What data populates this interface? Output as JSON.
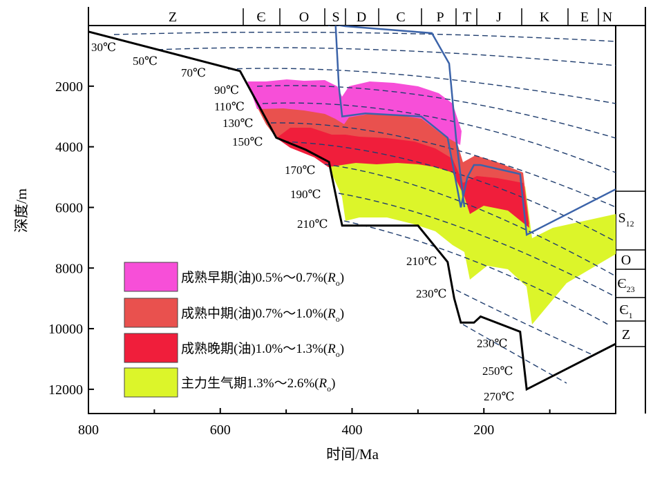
{
  "chart_data": {
    "type": "area",
    "title": "",
    "xlabel": "时间/Ma",
    "ylabel": "深度/m",
    "xlim": [
      800,
      0
    ],
    "ylim": [
      0,
      12800
    ],
    "x_ticks": [
      800,
      600,
      400,
      200
    ],
    "y_ticks": [
      2000,
      4000,
      6000,
      8000,
      10000,
      12000
    ],
    "periods": [
      "Z",
      "Є",
      "O",
      "S",
      "D",
      "C",
      "P",
      "T",
      "J",
      "K",
      "E",
      "N"
    ],
    "strata_right": [
      "S12",
      "O",
      "Є23",
      "Є1",
      "Z"
    ],
    "legend": [
      {
        "label": "成熟早期(油)0.5%～0.7%(Ro)",
        "color": "#f74fd8"
      },
      {
        "label": "成熟中期(油)0.7%～1.0%(Ro)",
        "color": "#e9514e"
      },
      {
        "label": "成熟晚期(油)1.0%～1.3%(Ro)",
        "color": "#f01e3b"
      },
      {
        "label": "主力生气期1.3%～2.6%(Ro)",
        "color": "#dcf52a"
      }
    ],
    "isotherm_labels": [
      "30℃",
      "50℃",
      "70℃",
      "90℃",
      "110℃",
      "130℃",
      "150℃",
      "170℃",
      "190℃",
      "210℃",
      "210℃",
      "230℃",
      "230℃",
      "250℃",
      "270℃"
    ],
    "burial_curve_bottom": {
      "name": "Z",
      "x": [
        800,
        570,
        515,
        470,
        435,
        420,
        415,
        300,
        255,
        245,
        235,
        215,
        205,
        145,
        135,
        0
      ],
      "y": [
        200,
        1500,
        3700,
        4100,
        4500,
        6100,
        6600,
        6600,
        7800,
        9000,
        9800,
        9800,
        9600,
        10100,
        12000,
        10500
      ]
    },
    "burial_curve_top": {
      "name": "S12",
      "x": [
        425,
        420,
        415,
        380,
        295,
        255,
        235,
        225,
        215,
        205,
        145,
        135,
        0
      ],
      "y": [
        0,
        2000,
        3000,
        2900,
        3000,
        3700,
        6000,
        5000,
        4600,
        4600,
        4900,
        6900,
        5400
      ]
    }
  }
}
